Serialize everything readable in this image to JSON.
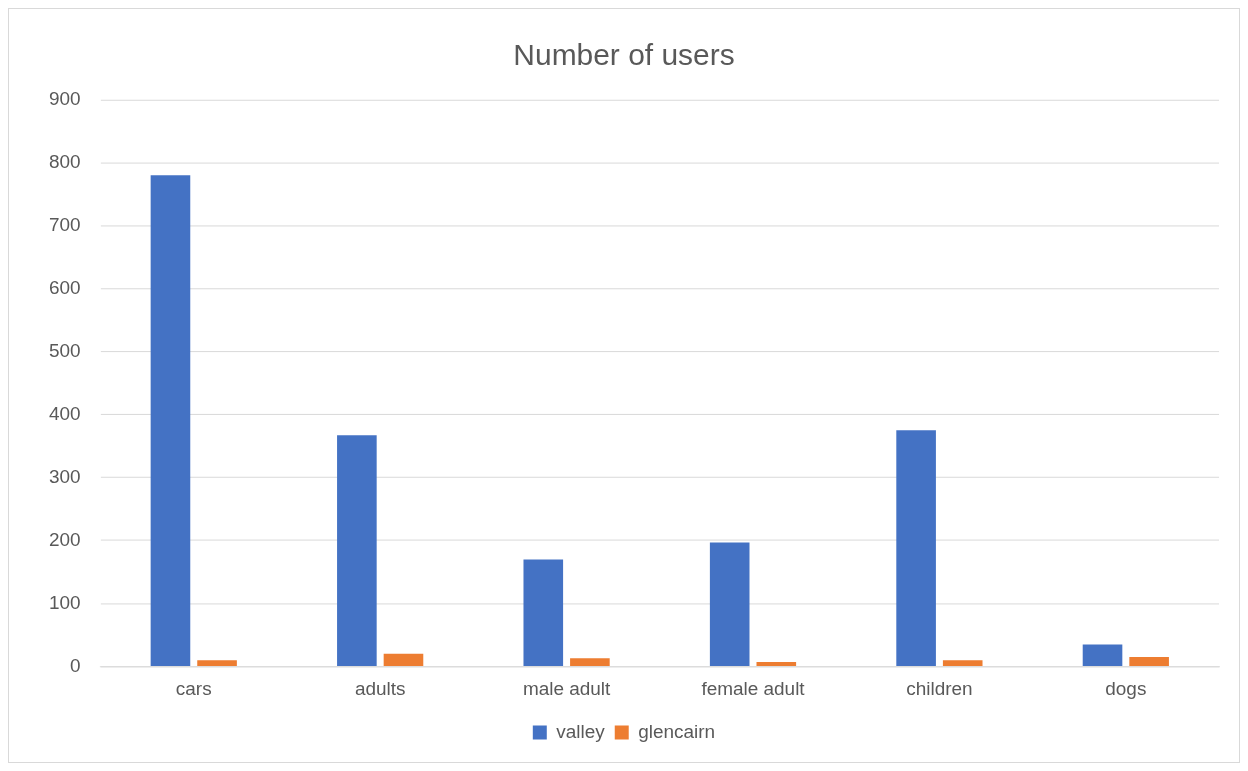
{
  "chart_data": {
    "type": "bar",
    "title": "Number of users",
    "categories": [
      "cars",
      "adults",
      "male adult",
      "female adult",
      "children",
      "dogs"
    ],
    "series": [
      {
        "name": "valley",
        "color": "#4472c4",
        "values": [
          780,
          367,
          170,
          197,
          375,
          35
        ]
      },
      {
        "name": "glencairn",
        "color": "#ed7d31",
        "values": [
          10,
          20,
          13,
          7,
          10,
          15
        ]
      }
    ],
    "ylim": [
      0,
      900
    ],
    "yticks": [
      0,
      100,
      200,
      300,
      400,
      500,
      600,
      700,
      800,
      900
    ],
    "grid": "y",
    "legend": "bottom"
  }
}
